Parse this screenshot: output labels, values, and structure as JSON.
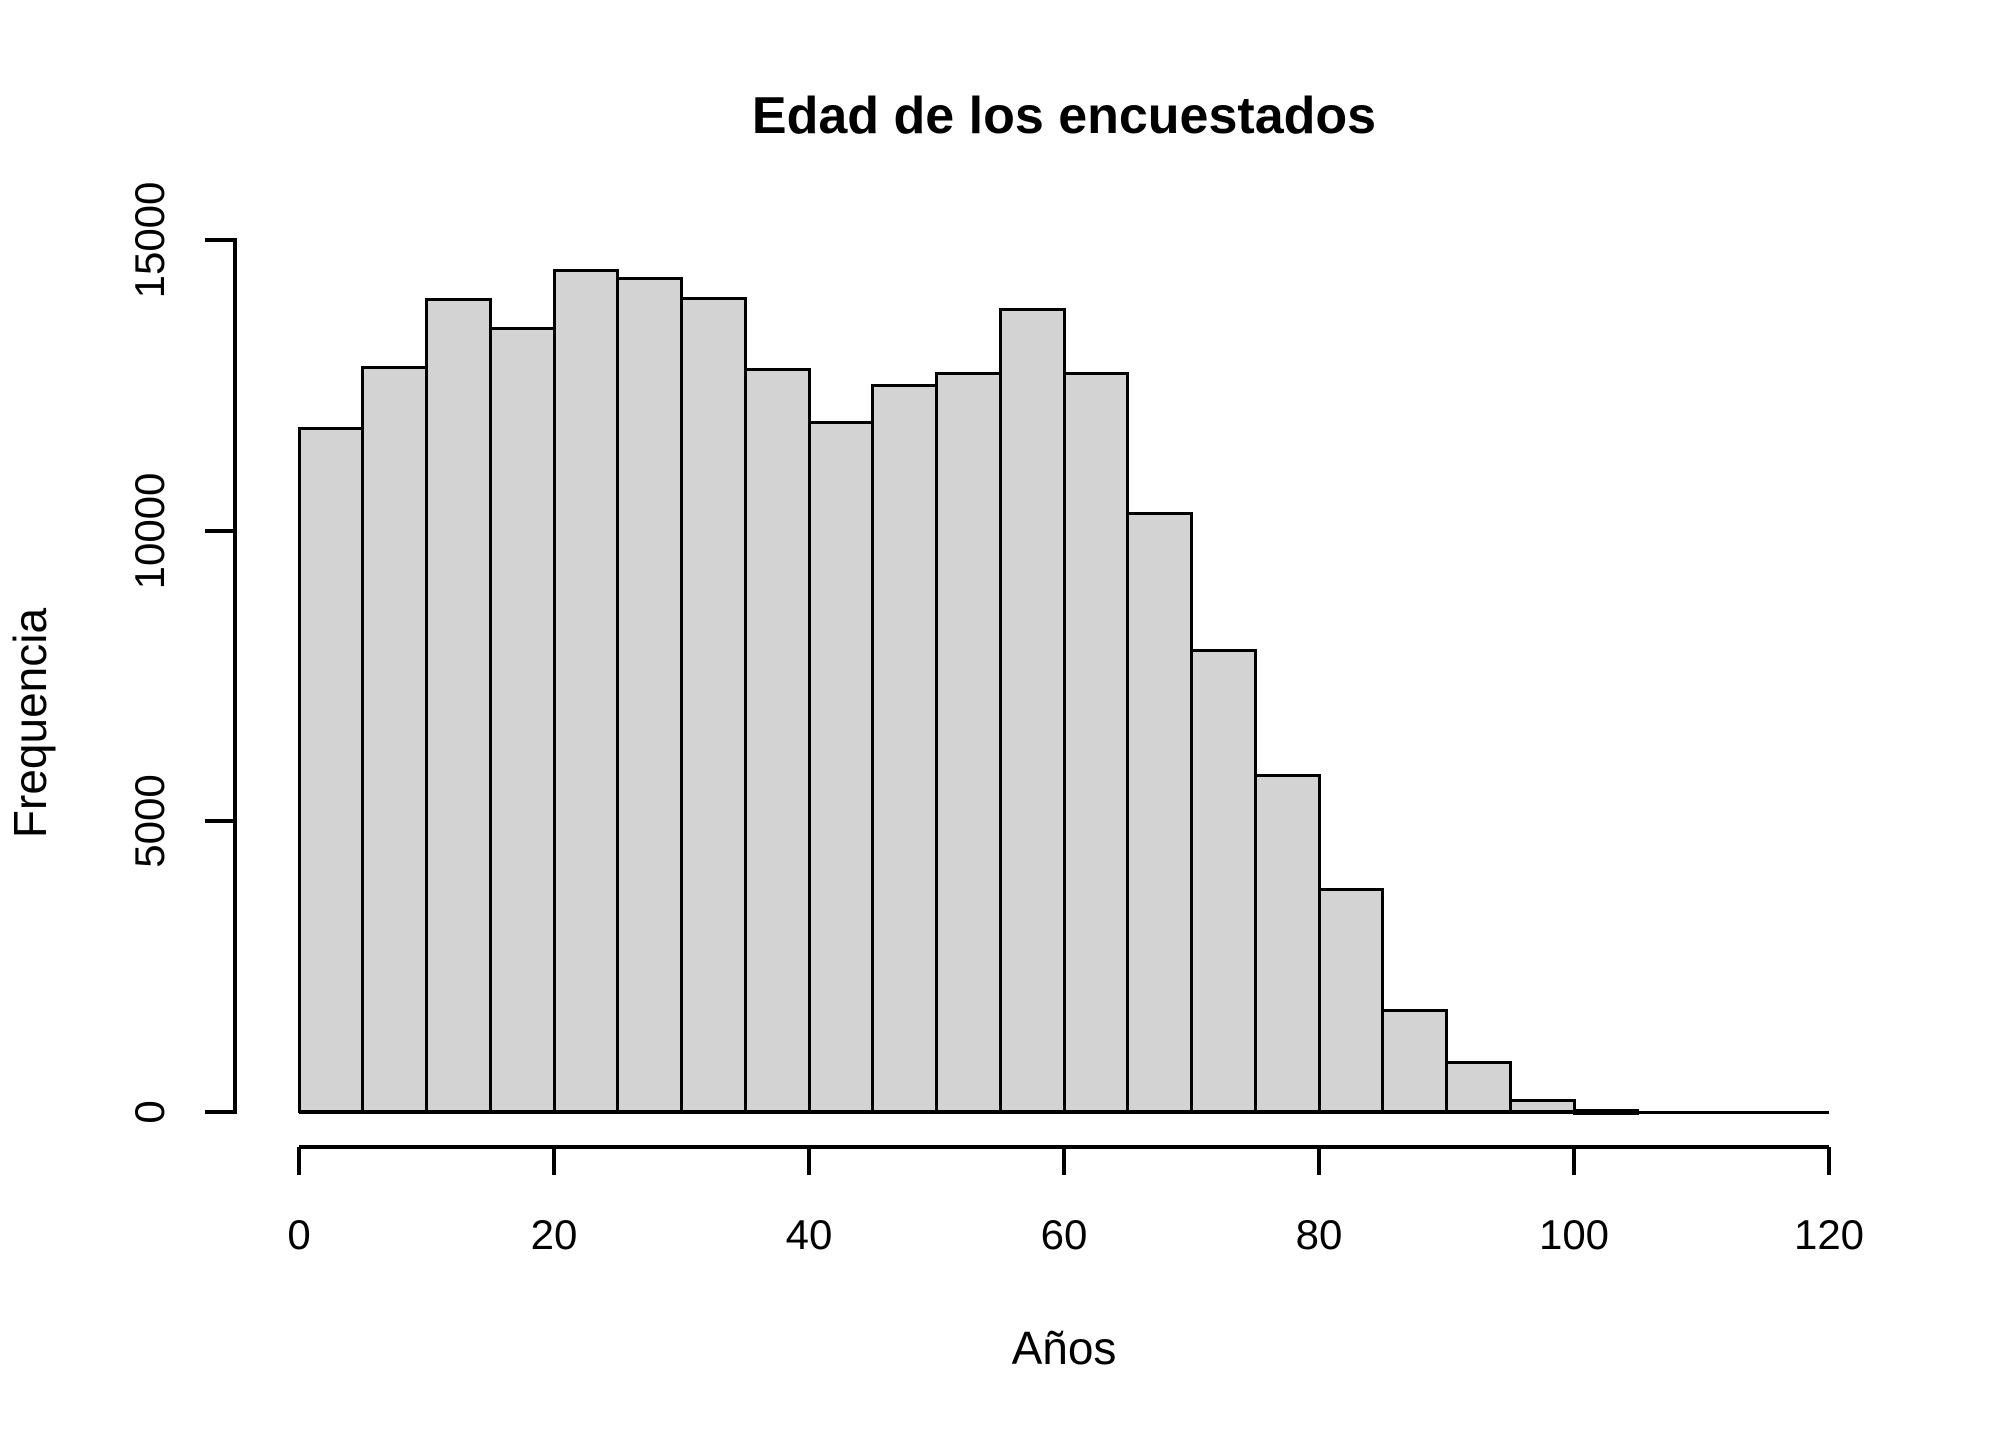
{
  "chart_data": {
    "type": "bar",
    "chart_kind": "histogram",
    "title": "Edad de los encuestados",
    "xlabel": "Años",
    "ylabel": "Frequencia",
    "xlim": [
      0,
      120
    ],
    "ylim": [
      0,
      15000
    ],
    "x_ticks": [
      0,
      20,
      40,
      60,
      80,
      100,
      120
    ],
    "y_ticks": [
      0,
      5000,
      10000,
      15000
    ],
    "bin_width": 5,
    "bin_edges": [
      0,
      5,
      10,
      15,
      20,
      25,
      30,
      35,
      40,
      45,
      50,
      55,
      60,
      65,
      70,
      75,
      80,
      85,
      90,
      95,
      100,
      105,
      110,
      115,
      120
    ],
    "counts": [
      11750,
      12800,
      13970,
      13470,
      14480,
      14340,
      13990,
      12780,
      11860,
      12500,
      12700,
      13810,
      12700,
      10290,
      7940,
      5790,
      3830,
      1750,
      860,
      200,
      30,
      5,
      0,
      0
    ],
    "grid": false,
    "legend": "none",
    "bar_fill": "#d3d3d3",
    "bar_border": "#000000",
    "background": "#ffffff",
    "text_color": "#000000"
  }
}
